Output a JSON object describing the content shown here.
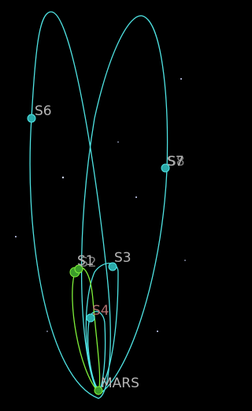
{
  "labels": {
    "s6": "S6",
    "s7": "S7",
    "s8": "S8",
    "s1": "S1",
    "s2": "S2",
    "s3": "S3",
    "s4": "S4",
    "mars": "MARS"
  }
}
